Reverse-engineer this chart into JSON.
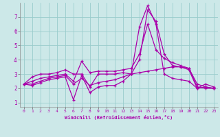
{
  "x": [
    0,
    1,
    2,
    3,
    4,
    5,
    6,
    7,
    8,
    9,
    10,
    11,
    12,
    13,
    14,
    15,
    16,
    17,
    18,
    19,
    20,
    21,
    22,
    23
  ],
  "line1": [
    2.3,
    2.8,
    3.0,
    3.0,
    3.1,
    3.3,
    3.0,
    3.0,
    2.1,
    3.0,
    3.0,
    3.0,
    3.1,
    3.0,
    4.0,
    7.5,
    6.7,
    4.4,
    3.6,
    3.5,
    3.3,
    2.0,
    2.3,
    2.1
  ],
  "line2": [
    2.3,
    2.2,
    2.4,
    2.6,
    2.7,
    2.8,
    1.2,
    2.9,
    1.7,
    2.1,
    2.2,
    2.2,
    2.5,
    3.0,
    6.3,
    7.8,
    6.5,
    3.0,
    2.7,
    2.6,
    2.5,
    2.0,
    2.1,
    2.0
  ],
  "line3": [
    2.3,
    2.5,
    2.7,
    2.8,
    2.9,
    3.0,
    2.5,
    3.9,
    3.1,
    3.2,
    3.2,
    3.2,
    3.3,
    3.4,
    4.4,
    6.5,
    4.7,
    4.1,
    3.8,
    3.6,
    3.4,
    2.3,
    2.1,
    2.0
  ],
  "line4": [
    2.3,
    2.3,
    2.5,
    2.7,
    2.8,
    2.9,
    2.3,
    2.7,
    2.2,
    2.4,
    2.5,
    2.6,
    2.8,
    3.0,
    3.1,
    3.2,
    3.3,
    3.4,
    3.5,
    3.5,
    3.4,
    2.1,
    2.0,
    2.0
  ],
  "xlim": [
    -0.5,
    23.5
  ],
  "ylim": [
    0.7,
    8.0
  ],
  "yticks": [
    1,
    2,
    3,
    4,
    5,
    6,
    7
  ],
  "xticks": [
    0,
    1,
    2,
    3,
    4,
    5,
    6,
    7,
    8,
    9,
    10,
    11,
    12,
    13,
    14,
    15,
    16,
    17,
    18,
    19,
    20,
    21,
    22,
    23
  ],
  "line_color": "#aa00aa",
  "bg_color": "#cce8e8",
  "grid_color": "#99cccc",
  "xlabel": "Windchill (Refroidissement éolien,°C)",
  "marker": "+"
}
